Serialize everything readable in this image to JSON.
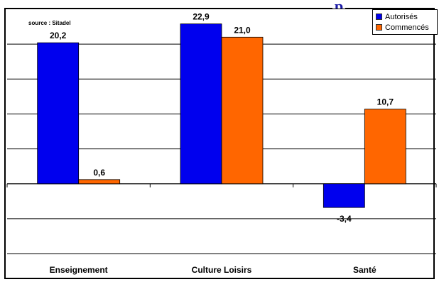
{
  "header": {
    "title_fragment": "p"
  },
  "source_note": "source : Sitadel",
  "legend": {
    "items": [
      {
        "label": "Autorisés",
        "color": "#0000ee"
      },
      {
        "label": "Commencés",
        "color": "#ff6600"
      }
    ]
  },
  "chart_data": {
    "type": "bar",
    "categories": [
      "Enseignement",
      "Culture Loisirs",
      "Santé"
    ],
    "series": [
      {
        "name": "Autorisés",
        "values": [
          20.2,
          22.9,
          -3.4
        ],
        "labels": [
          "20,2",
          "22,9",
          "-3,4"
        ],
        "color": "#0000ee"
      },
      {
        "name": "Commencés",
        "values": [
          0.6,
          21.0,
          10.7
        ],
        "labels": [
          "0,6",
          "21,0",
          "10,7"
        ],
        "color": "#ff6600"
      }
    ],
    "ylim": [
      -10,
      25
    ],
    "grid": true,
    "legend_position": "top-right"
  }
}
